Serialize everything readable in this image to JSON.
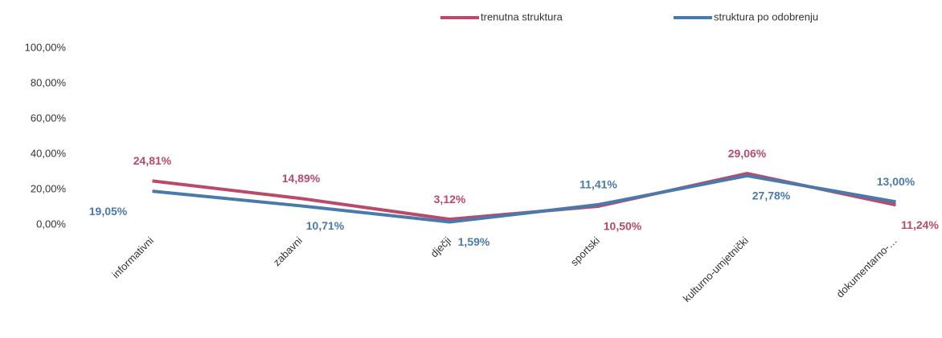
{
  "chart_data": {
    "type": "line",
    "categories": [
      "informativni",
      "zabavni",
      "dječji",
      "sportski",
      "kulturno-umjetnički",
      "dokumentarno-…"
    ],
    "series": [
      {
        "name": "trenutna struktura",
        "color": "#b94a6a",
        "values": [
          24.81,
          14.89,
          3.12,
          10.5,
          29.06,
          11.24
        ],
        "value_labels": [
          "24,81%",
          "14,89%",
          "3,12%",
          "10,50%",
          "29,06%",
          "11,24%"
        ]
      },
      {
        "name": "struktura po odobrenju",
        "color": "#4a7aab",
        "values": [
          19.05,
          10.71,
          1.59,
          11.41,
          27.78,
          13.0
        ],
        "value_labels": [
          "19,05%",
          "10,71%",
          "1,59%",
          "11,41%",
          "27,78%",
          "13,00%"
        ]
      }
    ],
    "ylim": [
      0,
      100
    ],
    "yticks": [
      {
        "value": 0,
        "label": "0,00%"
      },
      {
        "value": 20,
        "label": "20,00%"
      },
      {
        "value": 40,
        "label": "40,00%"
      },
      {
        "value": 60,
        "label": "60,00%"
      },
      {
        "value": 80,
        "label": "80,00%"
      },
      {
        "value": 100,
        "label": "100,00%"
      }
    ],
    "grid": false,
    "legend": "top"
  }
}
